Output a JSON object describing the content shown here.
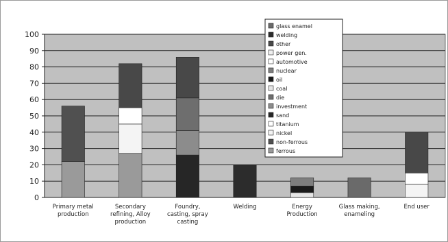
{
  "chart_data": {
    "type": "bar",
    "stacked": true,
    "title": "",
    "xlabel": "",
    "ylabel": "",
    "ylim": [
      0,
      100
    ],
    "yticks": [
      0,
      10,
      20,
      30,
      40,
      50,
      60,
      70,
      80,
      90,
      100
    ],
    "grid": true,
    "legend_position": "top-right (overlapping plot)",
    "plot_background": "#c0c0c0",
    "categories": [
      [
        "Primary metal",
        "production"
      ],
      [
        "Secondary",
        "refining, Alloy",
        "production"
      ],
      [
        "Foundry,",
        "casting, spray",
        "casting"
      ],
      [
        "Welding"
      ],
      [
        "Energy",
        "Production"
      ],
      [
        "Glass making,",
        "enameling"
      ],
      [
        "End user"
      ]
    ],
    "series": [
      {
        "name": "ferrous",
        "color": "#9a9a9a",
        "values": [
          22,
          27,
          0,
          0,
          0,
          0,
          0
        ]
      },
      {
        "name": "non-ferrous",
        "color": "#505050",
        "values": [
          34,
          0,
          0,
          0,
          0,
          0,
          0
        ]
      },
      {
        "name": "nickel",
        "color": "#f4f4f4",
        "values": [
          0,
          18,
          0,
          0,
          0,
          0,
          8
        ]
      },
      {
        "name": "titanium",
        "color": "#ffffff",
        "values": [
          0,
          10,
          0,
          0,
          0,
          0,
          7
        ]
      },
      {
        "name": "sand",
        "color": "#262626",
        "values": [
          0,
          0,
          26,
          0,
          0,
          0,
          0
        ]
      },
      {
        "name": "investment",
        "color": "#8c8c8c",
        "values": [
          0,
          0,
          15,
          0,
          0,
          0,
          0
        ]
      },
      {
        "name": "die",
        "color": "#6e6e6e",
        "values": [
          0,
          0,
          20,
          0,
          0,
          0,
          0
        ]
      },
      {
        "name": "coal",
        "color": "#e6e6e6",
        "values": [
          0,
          0,
          0,
          0,
          3,
          0,
          0
        ]
      },
      {
        "name": "oil",
        "color": "#1a1a1a",
        "values": [
          0,
          0,
          0,
          0,
          4,
          0,
          0
        ]
      },
      {
        "name": "nuclear",
        "color": "#7e7e7e",
        "values": [
          0,
          0,
          0,
          0,
          5,
          0,
          0
        ]
      },
      {
        "name": "automotive",
        "color": "#ffffff",
        "values": [
          0,
          0,
          0,
          0,
          0,
          0,
          0
        ]
      },
      {
        "name": "power gen.",
        "color": "#f0f0f0",
        "values": [
          0,
          0,
          0,
          0,
          0,
          0,
          0
        ]
      },
      {
        "name": "other",
        "color": "#484848",
        "values": [
          0,
          27,
          25,
          0,
          0,
          0,
          25
        ]
      },
      {
        "name": "welding",
        "color": "#2c2c2c",
        "values": [
          0,
          0,
          0,
          20,
          0,
          0,
          0
        ]
      },
      {
        "name": "glass enamel",
        "color": "#6a6a6a",
        "values": [
          0,
          0,
          0,
          0,
          0,
          12,
          0
        ]
      }
    ]
  }
}
